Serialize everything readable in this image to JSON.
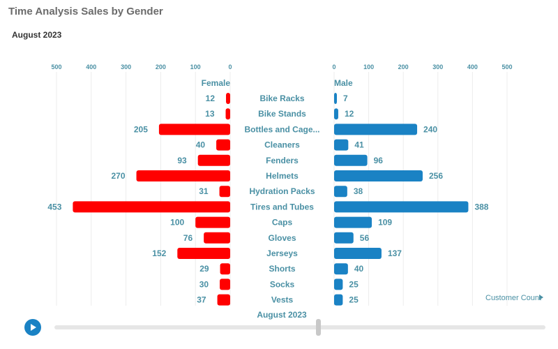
{
  "title": "Time Analysis Sales by Gender",
  "subtitle": "August 2023",
  "units_label": "Customer Count",
  "period_label": "August 2023",
  "play_icon": "play-icon",
  "colors": {
    "female": "#ff0000",
    "male": "#1a82c4",
    "text": "#4a90a4"
  },
  "chart_data": {
    "type": "bar",
    "orientation": "horizontal-butterfly",
    "categories": [
      "Bike Racks",
      "Bike Stands",
      "Bottles and Cage...",
      "Cleaners",
      "Fenders",
      "Helmets",
      "Hydration Packs",
      "Tires and Tubes",
      "Caps",
      "Gloves",
      "Jerseys",
      "Shorts",
      "Socks",
      "Vests"
    ],
    "series": [
      {
        "name": "Female",
        "values": [
          12,
          13,
          205,
          40,
          93,
          270,
          31,
          453,
          100,
          76,
          152,
          29,
          30,
          37
        ]
      },
      {
        "name": "Male",
        "values": [
          7,
          12,
          240,
          41,
          96,
          256,
          38,
          388,
          109,
          56,
          137,
          40,
          25,
          25
        ]
      }
    ],
    "xlim": [
      0,
      500
    ],
    "ticks": [
      "0",
      "100",
      "200",
      "300",
      "400",
      "500"
    ],
    "grid": true,
    "xlabel": "Customer Count"
  }
}
